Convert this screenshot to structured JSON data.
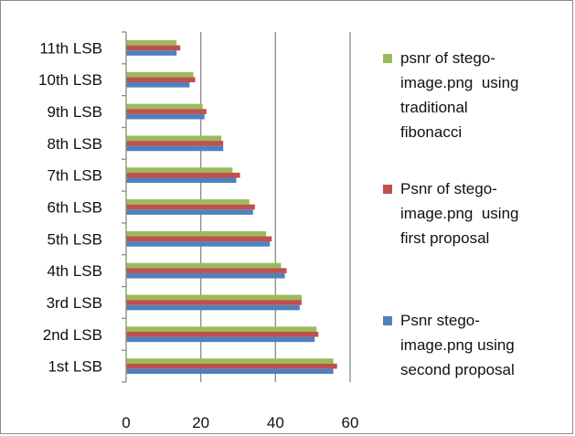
{
  "chart_data": {
    "type": "bar",
    "orientation": "horizontal",
    "categories": [
      "1st LSB",
      "2nd LSB",
      "3rd LSB",
      "4th LSB",
      "5th LSB",
      "6th LSB",
      "7th LSB",
      "8th LSB",
      "9th LSB",
      "10th LSB",
      "11th LSB"
    ],
    "series": [
      {
        "name": "psnr of stego-image.png using traditional fibonacci",
        "color": "#9BBB59",
        "values": [
          55.5,
          51,
          47,
          41.5,
          37.5,
          33,
          28.5,
          25.5,
          20.5,
          18,
          13.5
        ]
      },
      {
        "name": "Psnr of stego-image.png using first proposal",
        "color": "#C0504D",
        "values": [
          56.5,
          51.5,
          47,
          43,
          39,
          34.5,
          30.5,
          26,
          21.5,
          18.5,
          14.5
        ]
      },
      {
        "name": "Psnr stego-image.png using second proposal",
        "color": "#4F81BD",
        "values": [
          55.5,
          50.5,
          46.5,
          42.5,
          38.5,
          34,
          29.5,
          26,
          21,
          17,
          13.5
        ]
      }
    ],
    "xlim": [
      0,
      60
    ],
    "xticks": [
      0,
      20,
      40,
      60
    ],
    "xtick_labels": [
      "0",
      "20",
      "40",
      "60"
    ],
    "grid": "vertical",
    "legend_position": "right"
  }
}
